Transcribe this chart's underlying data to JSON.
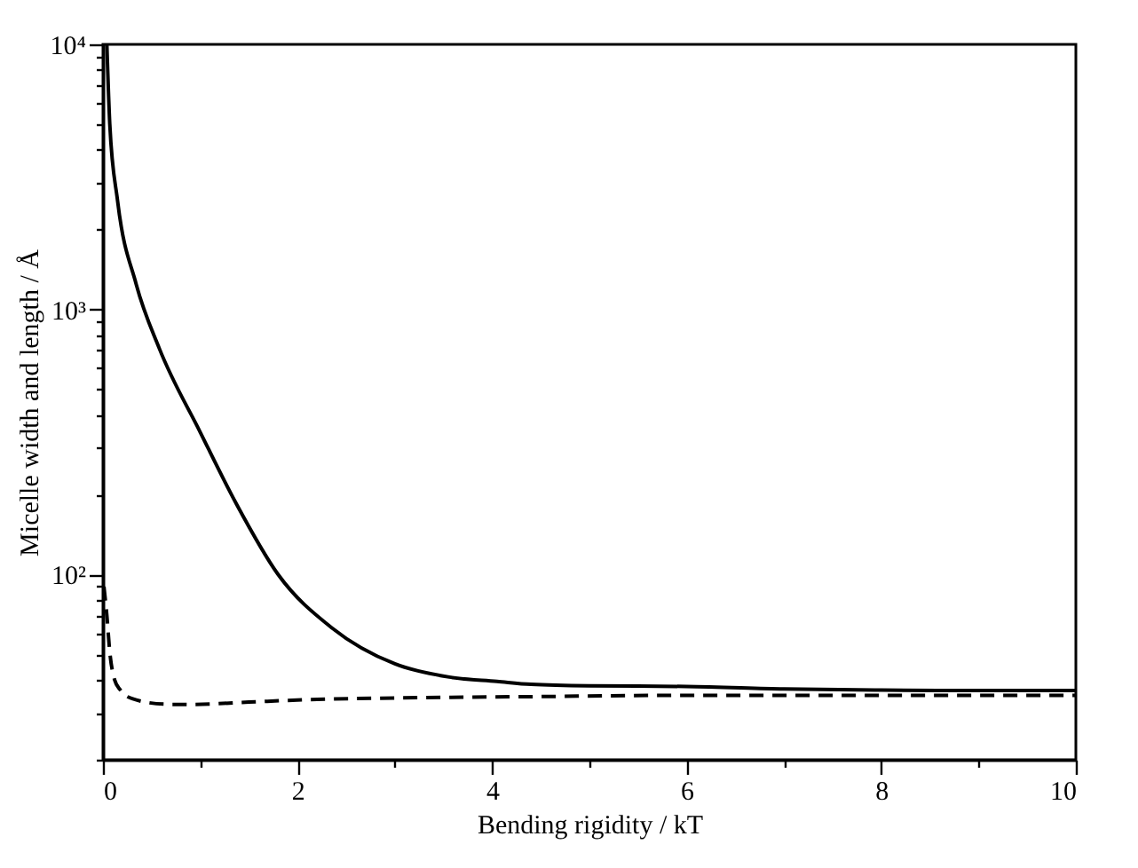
{
  "chart_data": {
    "type": "line",
    "xlabel": "Bending rigidity / kT",
    "ylabel": "Micelle width and length / Å",
    "log": "y",
    "xlim": [
      0,
      10
    ],
    "ylim": [
      20,
      10000
    ],
    "grid": false,
    "xticks": [
      0,
      {
        "value": 1,
        "label": null
      },
      2,
      {
        "value": 3,
        "label": null
      },
      4,
      {
        "value": 5,
        "label": null
      },
      6,
      {
        "value": 7,
        "label": null
      },
      8,
      {
        "value": 9,
        "label": null
      },
      10
    ],
    "yticks": [
      {
        "value": 20,
        "label": null
      },
      {
        "value": 30,
        "label": null
      },
      {
        "value": 40,
        "label": null
      },
      {
        "value": 50,
        "label": null
      },
      {
        "value": 60,
        "label": null
      },
      {
        "value": 70,
        "label": null
      },
      {
        "value": 80,
        "label": null
      },
      {
        "value": 90,
        "label": null
      },
      {
        "value": 100,
        "label": "10²"
      },
      {
        "value": 200,
        "label": null
      },
      {
        "value": 300,
        "label": null
      },
      {
        "value": 400,
        "label": null
      },
      {
        "value": 500,
        "label": null
      },
      {
        "value": 600,
        "label": null
      },
      {
        "value": 700,
        "label": null
      },
      {
        "value": 800,
        "label": null
      },
      {
        "value": 900,
        "label": null
      },
      {
        "value": 1000,
        "label": "10³"
      },
      {
        "value": 2000,
        "label": null
      },
      {
        "value": 3000,
        "label": null
      },
      {
        "value": 4000,
        "label": null
      },
      {
        "value": 5000,
        "label": null
      },
      {
        "value": 6000,
        "label": null
      },
      {
        "value": 7000,
        "label": null
      },
      {
        "value": 8000,
        "label": null
      },
      {
        "value": 9000,
        "label": null
      },
      {
        "value": 10000,
        "label": "10⁴"
      }
    ],
    "series": [
      {
        "color": "#000000",
        "line_style": "solid",
        "x": [
          0.04,
          0.07,
          0.15,
          0.34,
          0.58,
          1.0,
          1.37,
          1.8,
          2.35,
          3.0,
          3.56,
          4.05,
          4.4,
          5.0,
          6.0,
          7.0,
          8.0,
          9.0,
          10.0
        ],
        "values": [
          10000,
          5000,
          2570,
          1250,
          711,
          344,
          185,
          100,
          63,
          46,
          41,
          39.5,
          38.5,
          38,
          37.8,
          37,
          36.6,
          36.5,
          36.5
        ]
      },
      {
        "color": "#000000",
        "line_style": "dashed",
        "x": [
          0.01,
          0.04,
          0.07,
          0.12,
          0.18,
          0.3,
          0.64,
          0.9,
          1.5,
          2.2,
          3.0,
          4.4,
          6.0,
          8.0,
          10.0
        ],
        "values": [
          90,
          70,
          51,
          40,
          36.6,
          34,
          32.4,
          32.3,
          33,
          33.8,
          34.2,
          34.6,
          35,
          35,
          35
        ]
      }
    ]
  }
}
